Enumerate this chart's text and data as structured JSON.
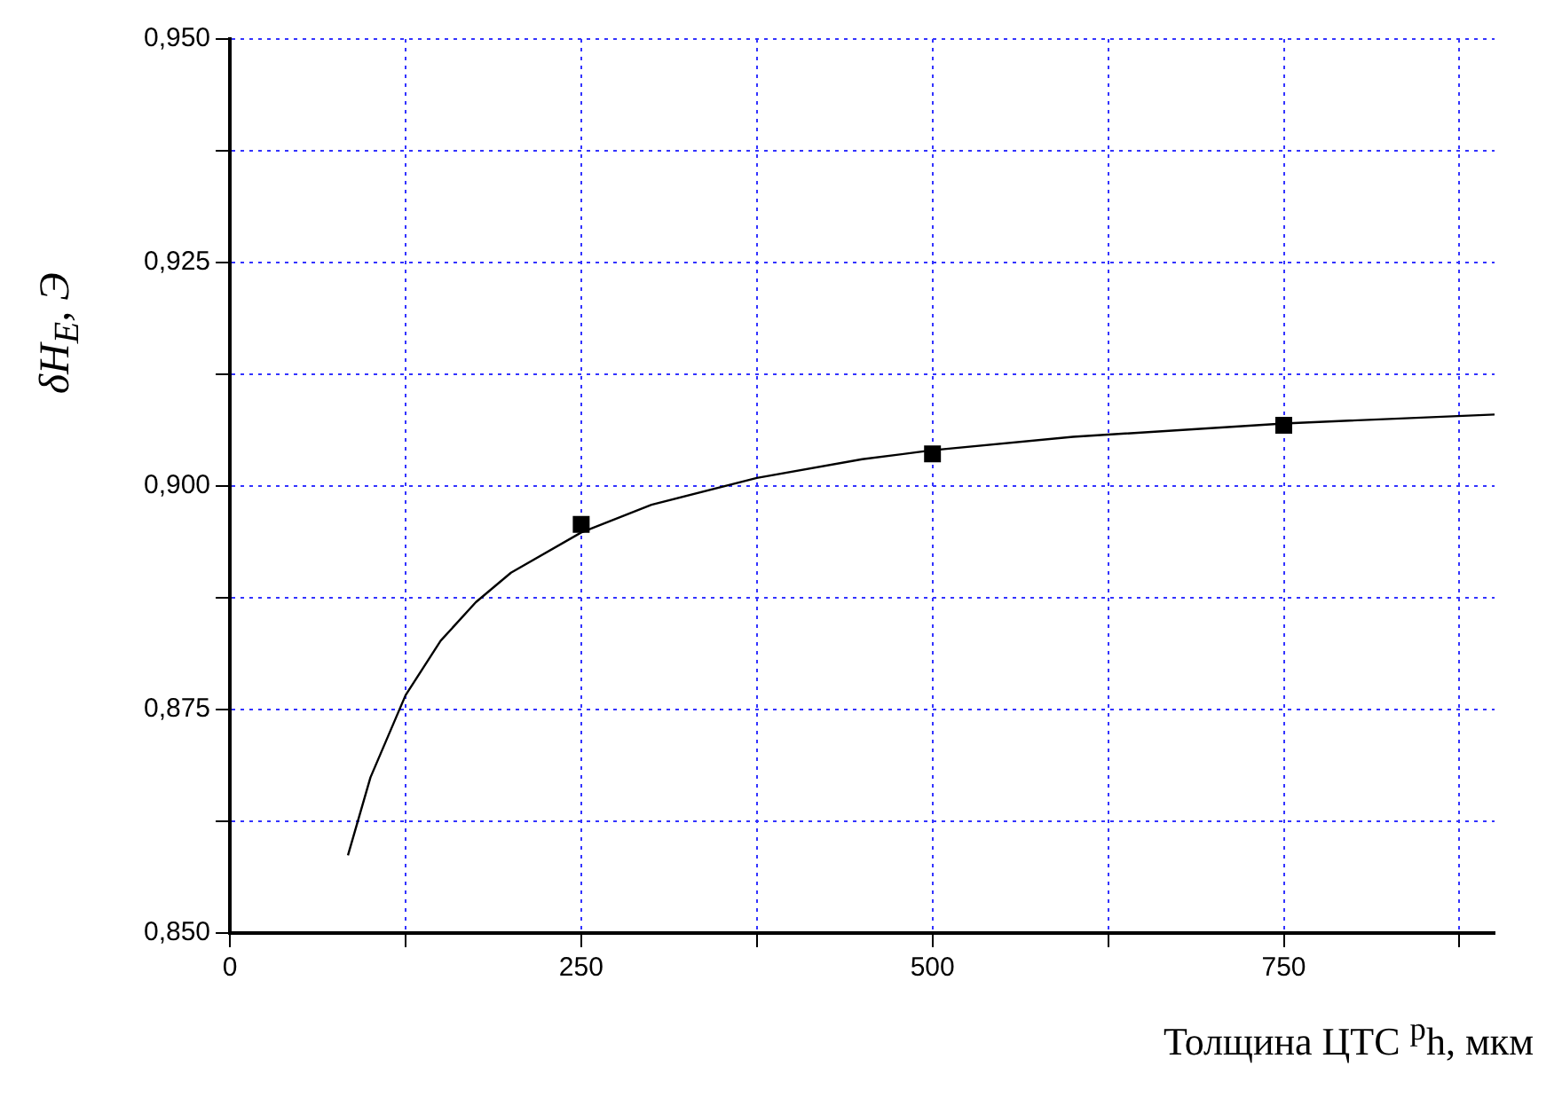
{
  "chart_data": {
    "type": "scatter",
    "xlabel": "Толщина ЦТС $^{p}$h, мкм",
    "ylabel": "δH$_{E}$, Э",
    "xlim": [
      0,
      900
    ],
    "ylim": [
      0.85,
      0.95
    ],
    "xticks": [
      0,
      {
        "value": 125,
        "label": null
      },
      250,
      {
        "value": 375,
        "label": null
      },
      500,
      {
        "value": 625,
        "label": null
      },
      750,
      {
        "value": 875,
        "label": null
      }
    ],
    "yticks": [
      {
        "value": 0.85,
        "label": "0,850"
      },
      {
        "value": 0.8625,
        "label": null
      },
      {
        "value": 0.875,
        "label": "0,875"
      },
      {
        "value": 0.8875,
        "label": null
      },
      {
        "value": 0.9,
        "label": "0,900"
      },
      {
        "value": 0.9125,
        "label": null
      },
      {
        "value": 0.925,
        "label": "0,925"
      },
      {
        "value": 0.9375,
        "label": null
      },
      {
        "value": 0.95,
        "label": "0,950"
      }
    ],
    "grid": true,
    "legend": false,
    "series": [
      {
        "type": "line",
        "color": "#000000",
        "marker": "none",
        "x": [
          84,
          100,
          125,
          150,
          175,
          200,
          250,
          300,
          375,
          450,
          500,
          600,
          750,
          900
        ],
        "values": [
          0.8587,
          0.8674,
          0.8766,
          0.8827,
          0.887,
          0.8903,
          0.8948,
          0.8979,
          0.9009,
          0.903,
          0.904,
          0.9055,
          0.907,
          0.908
        ]
      },
      {
        "type": "scatter",
        "color": "#000000",
        "marker": "square",
        "x": [
          250,
          500,
          750
        ],
        "values": [
          0.8957,
          0.9036,
          0.9068
        ]
      }
    ]
  }
}
